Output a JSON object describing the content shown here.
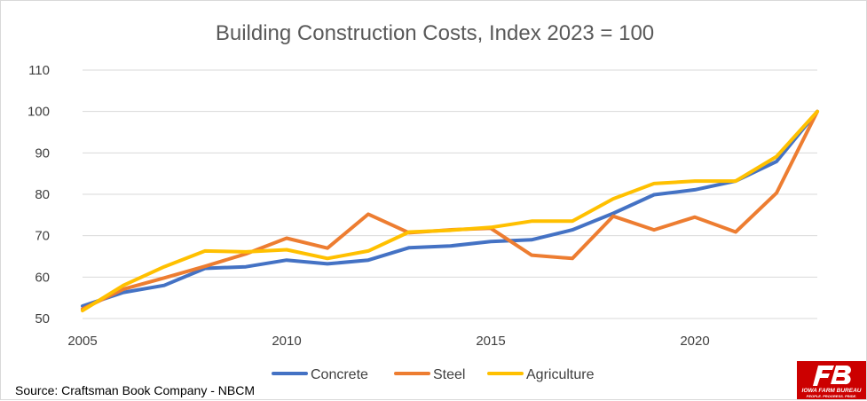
{
  "chart_data": {
    "type": "line",
    "title": "Building Construction Costs, Index 2023 = 100",
    "xlabel": "",
    "ylabel": "",
    "x": [
      2005,
      2006,
      2007,
      2008,
      2009,
      2010,
      2011,
      2012,
      2013,
      2014,
      2015,
      2016,
      2017,
      2018,
      2019,
      2020,
      2021,
      2022,
      2023
    ],
    "x_ticks": [
      "2005",
      "2010",
      "2015",
      "2020"
    ],
    "xlim": [
      2005,
      2023
    ],
    "y_ticks": [
      "50",
      "60",
      "70",
      "80",
      "90",
      "100",
      "110"
    ],
    "ylim": [
      50,
      110
    ],
    "grid": true,
    "legend_position": "bottom",
    "series": [
      {
        "name": "Concrete",
        "color": "#4472C4",
        "values": [
          53,
          56.3,
          58,
          62.1,
          62.5,
          64.1,
          63.2,
          64.1,
          67.1,
          67.5,
          68.6,
          69,
          71.4,
          75.4,
          79.9,
          81.1,
          83.2,
          87.9,
          100
        ]
      },
      {
        "name": "Steel",
        "color": "#ED7D31",
        "values": [
          52.3,
          57.1,
          59.8,
          62.6,
          65.6,
          69.4,
          67,
          75.2,
          70.7,
          71.4,
          71.8,
          65.3,
          64.5,
          74.7,
          71.4,
          74.5,
          70.9,
          80.3,
          100
        ]
      },
      {
        "name": "Agriculture",
        "color": "#FFC000",
        "values": [
          51.9,
          58,
          62.5,
          66.3,
          66.1,
          66.6,
          64.5,
          66.3,
          70.9,
          71.3,
          72,
          73.5,
          73.5,
          78.9,
          82.6,
          83.2,
          83.2,
          89.1,
          100
        ]
      }
    ]
  },
  "footer": {
    "source": "Source: Craftsman Book Company - NBCM"
  },
  "logo": {
    "name": "IOWA FARM BUREAU",
    "tagline": "PEOPLE. PROGRESS. PRIDE.",
    "brand_color": "#CC0000"
  }
}
